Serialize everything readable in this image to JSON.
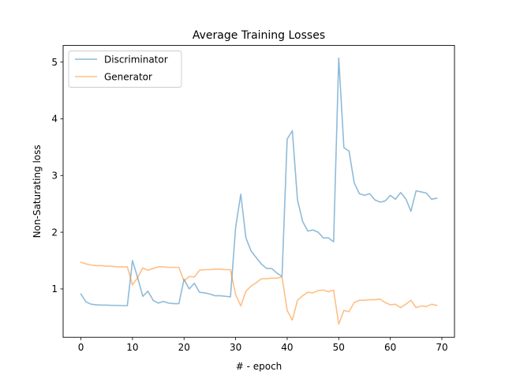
{
  "chart_data": {
    "type": "line",
    "title": "Average Training Losses",
    "xlabel": "# - epoch",
    "ylabel": "Non-Saturating loss",
    "xlim": [
      -3.45,
      72.45
    ],
    "ylim": [
      0.147,
      5.292
    ],
    "xticks": [
      0,
      10,
      20,
      30,
      40,
      50,
      60,
      70
    ],
    "yticks": [
      1,
      2,
      3,
      4,
      5
    ],
    "grid": false,
    "legend_position": "top-left",
    "series": [
      {
        "name": "Discriminator",
        "color": "#1f77b4",
        "alpha": 0.5,
        "x": [
          0,
          1,
          2,
          3,
          4,
          5,
          6,
          7,
          8,
          9,
          10,
          11,
          12,
          13,
          14,
          15,
          16,
          17,
          18,
          19,
          20,
          21,
          22,
          23,
          24,
          25,
          26,
          27,
          28,
          29,
          30,
          31,
          32,
          33,
          34,
          35,
          36,
          37,
          38,
          39,
          40,
          41,
          42,
          43,
          44,
          45,
          46,
          47,
          48,
          49,
          50,
          51,
          52,
          53,
          54,
          55,
          56,
          57,
          58,
          59,
          60,
          61,
          62,
          63,
          64,
          65,
          66,
          67,
          68,
          69
        ],
        "values": [
          0.91,
          0.77,
          0.73,
          0.72,
          0.715,
          0.715,
          0.71,
          0.71,
          0.705,
          0.705,
          1.5,
          1.2,
          0.87,
          0.96,
          0.8,
          0.75,
          0.78,
          0.75,
          0.74,
          0.74,
          1.17,
          1.0,
          1.1,
          0.94,
          0.93,
          0.91,
          0.88,
          0.88,
          0.87,
          0.86,
          2.08,
          2.67,
          1.9,
          1.67,
          1.55,
          1.44,
          1.36,
          1.36,
          1.28,
          1.22,
          3.64,
          3.79,
          2.57,
          2.19,
          2.02,
          2.04,
          2.0,
          1.9,
          1.9,
          1.83,
          5.07,
          3.49,
          3.43,
          2.87,
          2.68,
          2.65,
          2.68,
          2.57,
          2.53,
          2.55,
          2.65,
          2.58,
          2.7,
          2.59,
          2.37,
          2.73,
          2.71,
          2.69,
          2.58,
          2.6
        ]
      },
      {
        "name": "Generator",
        "color": "#ff7f0e",
        "alpha": 0.5,
        "x": [
          0,
          1,
          2,
          3,
          4,
          5,
          6,
          7,
          8,
          9,
          10,
          11,
          12,
          13,
          14,
          15,
          16,
          17,
          18,
          19,
          20,
          21,
          22,
          23,
          24,
          25,
          26,
          27,
          28,
          29,
          30,
          31,
          32,
          33,
          34,
          35,
          36,
          37,
          38,
          39,
          40,
          41,
          42,
          43,
          44,
          45,
          46,
          47,
          48,
          49,
          50,
          51,
          52,
          53,
          54,
          55,
          56,
          57,
          58,
          59,
          60,
          61,
          62,
          63,
          64,
          65,
          66,
          67,
          68,
          69
        ],
        "values": [
          1.47,
          1.44,
          1.42,
          1.41,
          1.41,
          1.4,
          1.4,
          1.39,
          1.39,
          1.39,
          1.07,
          1.2,
          1.37,
          1.33,
          1.36,
          1.39,
          1.39,
          1.38,
          1.38,
          1.38,
          1.14,
          1.22,
          1.21,
          1.33,
          1.34,
          1.34,
          1.35,
          1.35,
          1.34,
          1.34,
          0.9,
          0.7,
          0.96,
          1.05,
          1.11,
          1.18,
          1.18,
          1.19,
          1.19,
          1.21,
          0.62,
          0.45,
          0.8,
          0.88,
          0.94,
          0.93,
          0.97,
          0.98,
          0.95,
          0.98,
          0.38,
          0.62,
          0.6,
          0.76,
          0.8,
          0.8,
          0.81,
          0.81,
          0.82,
          0.76,
          0.72,
          0.73,
          0.67,
          0.73,
          0.8,
          0.67,
          0.7,
          0.69,
          0.73,
          0.71
        ]
      }
    ]
  }
}
